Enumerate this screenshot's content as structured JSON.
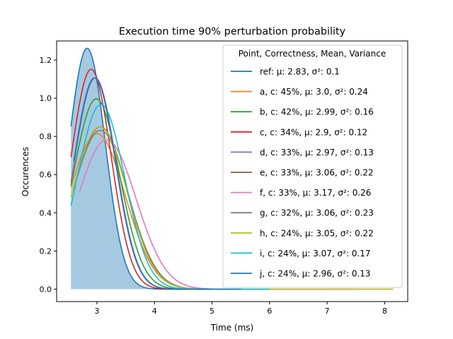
{
  "chart_data": {
    "type": "line",
    "title": "Execution time 90% perturbation probability",
    "xlabel": "Time (ms)",
    "ylabel": "Occurences",
    "xlim": [
      2.3,
      8.4
    ],
    "ylim": [
      -0.065,
      1.3
    ],
    "x_ticks": [
      3,
      4,
      5,
      6,
      7,
      8
    ],
    "y_ticks": [
      0.0,
      0.2,
      0.4,
      0.6,
      0.8,
      1.0,
      1.2
    ],
    "x_tick_labels": [
      "3",
      "4",
      "5",
      "6",
      "7",
      "8"
    ],
    "y_tick_labels": [
      "0.0",
      "0.2",
      "0.4",
      "0.6",
      "0.8",
      "1.0",
      "1.2"
    ],
    "legend_title": "Point, Correctness, Mean, Variance",
    "legend_position": "upper-right",
    "filled_series": "ref",
    "series": [
      {
        "name": "ref",
        "label_text": "ref: μ: 2.83, σ²: 0.1",
        "mean": 2.83,
        "variance": 0.1,
        "x_range": [
          2.55,
          5.2
        ],
        "color": "#1f77b4"
      },
      {
        "name": "a",
        "label_text": "a, c: 45%, μ: 3.0, σ²: 0.24",
        "mean": 3.0,
        "variance": 0.24,
        "x_range": [
          2.55,
          7.45
        ],
        "color": "#ff7f0e"
      },
      {
        "name": "b",
        "label_text": "b, c: 42%, μ: 2.99, σ²: 0.16",
        "mean": 2.99,
        "variance": 0.16,
        "x_range": [
          2.55,
          5.5
        ],
        "color": "#2ca02c"
      },
      {
        "name": "c",
        "label_text": "c, c: 34%, μ: 2.9, σ²: 0.12",
        "mean": 2.9,
        "variance": 0.12,
        "x_range": [
          2.55,
          5.3
        ],
        "color": "#d62728"
      },
      {
        "name": "d",
        "label_text": "d, c: 33%, μ: 2.97, σ²: 0.13",
        "mean": 2.97,
        "variance": 0.13,
        "x_range": [
          2.55,
          5.5
        ],
        "color": "#9467bd"
      },
      {
        "name": "e",
        "label_text": "e, c: 33%, μ: 3.06, σ²: 0.22",
        "mean": 3.06,
        "variance": 0.22,
        "x_range": [
          2.6,
          7.0
        ],
        "color": "#8c564b"
      },
      {
        "name": "f",
        "label_text": "f, c: 33%, μ: 3.17, σ²: 0.26",
        "mean": 3.17,
        "variance": 0.26,
        "x_range": [
          2.7,
          8.1
        ],
        "color": "#e377c2"
      },
      {
        "name": "g",
        "label_text": "g, c: 32%, μ: 3.06, σ²: 0.23",
        "mean": 3.06,
        "variance": 0.23,
        "x_range": [
          2.6,
          7.45
        ],
        "color": "#7f7f7f"
      },
      {
        "name": "h",
        "label_text": "h, c: 24%, μ: 3.05, σ²: 0.22",
        "mean": 3.05,
        "variance": 0.22,
        "x_range": [
          2.55,
          8.15
        ],
        "color": "#bcbd22"
      },
      {
        "name": "i",
        "label_text": "i, c: 24%, μ: 3.07, σ²: 0.17",
        "mean": 3.07,
        "variance": 0.17,
        "x_range": [
          2.55,
          6.0
        ],
        "color": "#17becf"
      },
      {
        "name": "j",
        "label_text": "j, c: 24%, μ: 2.96, σ²: 0.13",
        "mean": 2.96,
        "variance": 0.13,
        "x_range": [
          2.6,
          5.5
        ],
        "color": "#1f77b4"
      }
    ]
  }
}
